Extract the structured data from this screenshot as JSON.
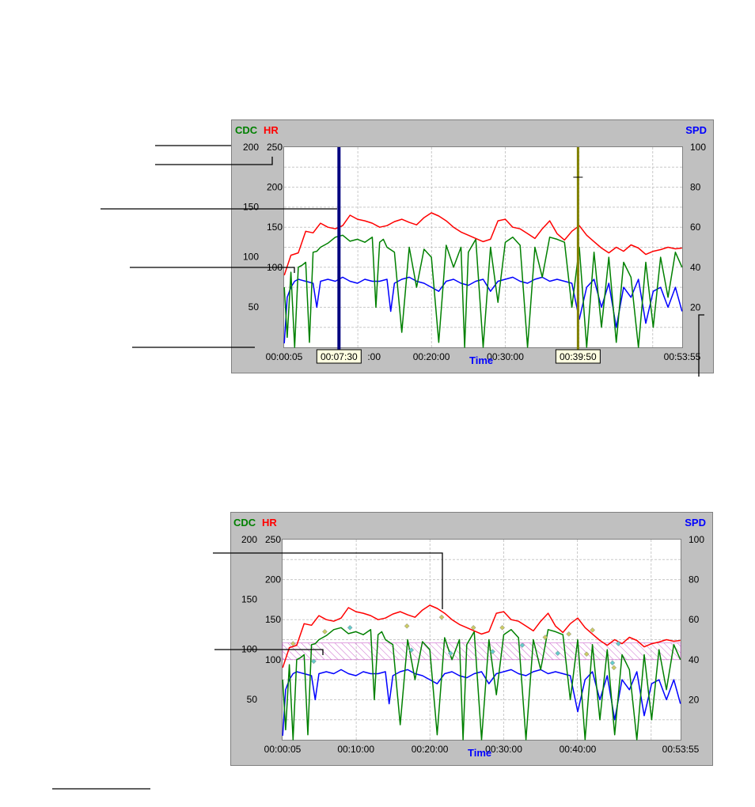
{
  "chart_data": [
    {
      "type": "line",
      "x_axis": {
        "title": "Time",
        "ticks": [
          "00:00:05",
          "00:07:30",
          "00:20:00",
          "00:30:00",
          "00:39:50",
          "00:53:55"
        ],
        "range_minutes": [
          0.08,
          53.92
        ]
      },
      "left_axes": [
        {
          "label": "CDC",
          "color": "#008000",
          "ticks": [
            "200",
            "150",
            "100",
            "50"
          ],
          "range": [
            0,
            200
          ]
        },
        {
          "label": "HR",
          "color": "#ff0000",
          "ticks": [
            "250",
            "200",
            "150",
            "100"
          ],
          "range": [
            0,
            250
          ]
        }
      ],
      "right_axis": {
        "label": "SPD",
        "color": "#0000ff",
        "ticks": [
          "100",
          "80",
          "60",
          "40",
          "20"
        ],
        "range": [
          0,
          100
        ]
      },
      "cursors": [
        {
          "time": "00:07:30",
          "minutes": 7.5,
          "color": "#000080"
        },
        {
          "time": "00:39:50",
          "minutes": 39.83,
          "color": "#808000"
        }
      ],
      "series": [
        {
          "name": "HR",
          "axis": "HR",
          "color": "#ff0000",
          "x_minutes": [
            0.1,
            1,
            2,
            3,
            4,
            5,
            6,
            7,
            8,
            9,
            10,
            11,
            12,
            13,
            14,
            15,
            16,
            17,
            18,
            19,
            20,
            21,
            22,
            23,
            24,
            25,
            26,
            27,
            28,
            29,
            30,
            31,
            32,
            33,
            34,
            35,
            36,
            37,
            38,
            39,
            40,
            41,
            42,
            43,
            44,
            45,
            46,
            47,
            48,
            49,
            50,
            51,
            52,
            53,
            53.9
          ],
          "values": [
            90,
            115,
            118,
            145,
            143,
            155,
            150,
            148,
            152,
            165,
            160,
            158,
            155,
            150,
            152,
            157,
            160,
            156,
            153,
            162,
            168,
            164,
            158,
            150,
            144,
            140,
            136,
            132,
            135,
            158,
            160,
            150,
            148,
            142,
            136,
            148,
            158,
            142,
            134,
            145,
            152,
            140,
            132,
            124,
            118,
            125,
            120,
            128,
            124,
            116,
            120,
            122,
            125,
            123,
            124
          ]
        },
        {
          "name": "CDC",
          "axis": "CDC",
          "color": "#008000",
          "x_minutes": [
            0.1,
            0.5,
            1,
            1.5,
            2,
            2.5,
            3,
            3.5,
            4,
            4.5,
            5,
            6,
            7,
            8,
            9,
            10,
            11,
            12,
            12.5,
            13,
            13.5,
            14,
            15,
            16,
            17,
            18,
            19,
            20,
            21,
            22,
            23,
            24,
            24.5,
            25,
            26,
            27,
            28,
            29,
            30,
            31,
            32,
            33,
            34,
            35,
            36,
            37,
            38,
            39,
            40,
            41,
            42,
            43,
            44,
            45,
            46,
            47,
            48,
            49,
            50,
            51,
            52,
            53,
            53.9
          ],
          "values": [
            60,
            10,
            75,
            0,
            80,
            82,
            85,
            5,
            95,
            96,
            100,
            104,
            110,
            112,
            106,
            108,
            105,
            110,
            40,
            105,
            108,
            100,
            95,
            15,
            100,
            60,
            98,
            90,
            5,
            102,
            80,
            100,
            0,
            95,
            108,
            0,
            100,
            45,
            105,
            110,
            102,
            0,
            100,
            70,
            110,
            108,
            105,
            40,
            100,
            0,
            95,
            20,
            90,
            5,
            85,
            70,
            0,
            85,
            20,
            90,
            50,
            95,
            80
          ]
        },
        {
          "name": "SPD",
          "axis": "SPD",
          "color": "#0000ff",
          "x_minutes": [
            0.1,
            0.5,
            1,
            1.5,
            2,
            3,
            4,
            4.5,
            5,
            6,
            7,
            8,
            9,
            10,
            11,
            12,
            13,
            14,
            14.5,
            15,
            16,
            17,
            18,
            19,
            20,
            21,
            22,
            23,
            24,
            25,
            26,
            27,
            28,
            29,
            30,
            31,
            32,
            33,
            34,
            35,
            36,
            37,
            38,
            39,
            40,
            41,
            42,
            43,
            44,
            45,
            46,
            47,
            48,
            49,
            50,
            51,
            52,
            53,
            53.9
          ],
          "values": [
            2,
            25,
            30,
            33,
            34,
            33,
            32,
            20,
            33,
            34,
            33,
            35,
            33,
            32,
            34,
            33,
            33,
            34,
            18,
            32,
            34,
            35,
            33,
            32,
            30,
            28,
            33,
            34,
            32,
            31,
            33,
            34,
            28,
            33,
            34,
            35,
            33,
            32,
            34,
            35,
            33,
            34,
            33,
            32,
            14,
            30,
            34,
            20,
            32,
            10,
            30,
            25,
            34,
            12,
            28,
            30,
            20,
            30,
            18
          ]
        }
      ]
    },
    {
      "type": "line",
      "x_axis": {
        "title": "Time",
        "ticks": [
          "00:00:05",
          "00:10:00",
          "00:20:00",
          "00:30:00",
          "00:40:00",
          "00:53:55"
        ],
        "range_minutes": [
          0.08,
          53.92
        ]
      },
      "left_axes": [
        {
          "label": "CDC",
          "color": "#008000",
          "ticks": [
            "200",
            "150",
            "100",
            "50"
          ],
          "range": [
            0,
            200
          ]
        },
        {
          "label": "HR",
          "color": "#ff0000",
          "ticks": [
            "250",
            "200",
            "150",
            "100"
          ],
          "range": [
            0,
            250
          ]
        }
      ],
      "right_axis": {
        "label": "SPD",
        "color": "#0000ff",
        "ticks": [
          "100",
          "80",
          "60",
          "40",
          "20"
        ],
        "range": [
          0,
          100
        ]
      },
      "hr_zone": {
        "axis": "HR",
        "range": [
          100,
          121
        ],
        "color": "#cc66cc"
      },
      "series": [
        {
          "name": "HR",
          "axis": "HR",
          "color": "#ff0000",
          "x_minutes": [
            0.1,
            1,
            2,
            3,
            4,
            5,
            6,
            7,
            8,
            9,
            10,
            11,
            12,
            13,
            14,
            15,
            16,
            17,
            18,
            19,
            20,
            21,
            22,
            23,
            24,
            25,
            26,
            27,
            28,
            29,
            30,
            31,
            32,
            33,
            34,
            35,
            36,
            37,
            38,
            39,
            40,
            41,
            42,
            43,
            44,
            45,
            46,
            47,
            48,
            49,
            50,
            51,
            52,
            53,
            53.9
          ],
          "values": [
            90,
            115,
            118,
            145,
            143,
            155,
            150,
            148,
            152,
            165,
            160,
            158,
            155,
            150,
            152,
            157,
            160,
            156,
            153,
            162,
            168,
            164,
            158,
            150,
            144,
            140,
            136,
            132,
            135,
            158,
            160,
            150,
            148,
            142,
            136,
            148,
            158,
            142,
            134,
            145,
            152,
            140,
            132,
            124,
            118,
            125,
            120,
            128,
            124,
            116,
            120,
            122,
            125,
            123,
            124
          ]
        },
        {
          "name": "CDC",
          "axis": "CDC",
          "color": "#008000",
          "x_minutes": [
            0.1,
            0.5,
            1,
            1.5,
            2,
            2.5,
            3,
            3.5,
            4,
            4.5,
            5,
            6,
            7,
            8,
            9,
            10,
            11,
            12,
            12.5,
            13,
            13.5,
            14,
            15,
            16,
            17,
            18,
            19,
            20,
            21,
            22,
            23,
            24,
            24.5,
            25,
            26,
            27,
            28,
            29,
            30,
            31,
            32,
            33,
            34,
            35,
            36,
            37,
            38,
            39,
            40,
            41,
            42,
            43,
            44,
            45,
            46,
            47,
            48,
            49,
            50,
            51,
            52,
            53,
            53.9
          ],
          "values": [
            60,
            10,
            75,
            0,
            80,
            82,
            85,
            5,
            95,
            96,
            100,
            104,
            110,
            112,
            106,
            108,
            105,
            110,
            40,
            105,
            108,
            100,
            95,
            15,
            100,
            60,
            98,
            90,
            5,
            102,
            80,
            100,
            0,
            95,
            108,
            0,
            100,
            45,
            105,
            110,
            102,
            0,
            100,
            70,
            110,
            108,
            105,
            40,
            100,
            0,
            95,
            20,
            90,
            5,
            85,
            70,
            0,
            85,
            20,
            90,
            50,
            95,
            80
          ]
        },
        {
          "name": "SPD",
          "axis": "SPD",
          "color": "#0000ff",
          "x_minutes": [
            0.1,
            0.5,
            1,
            1.5,
            2,
            3,
            4,
            4.5,
            5,
            6,
            7,
            8,
            9,
            10,
            11,
            12,
            13,
            14,
            14.5,
            15,
            16,
            17,
            18,
            19,
            20,
            21,
            22,
            23,
            24,
            25,
            26,
            27,
            28,
            29,
            30,
            31,
            32,
            33,
            34,
            35,
            36,
            37,
            38,
            39,
            40,
            41,
            42,
            43,
            44,
            45,
            46,
            47,
            48,
            49,
            50,
            51,
            52,
            53,
            53.9
          ],
          "values": [
            2,
            25,
            30,
            33,
            34,
            33,
            32,
            20,
            33,
            34,
            33,
            35,
            33,
            32,
            34,
            33,
            33,
            34,
            18,
            32,
            34,
            35,
            33,
            32,
            30,
            28,
            33,
            34,
            32,
            31,
            33,
            34,
            28,
            33,
            34,
            35,
            33,
            32,
            34,
            35,
            33,
            34,
            33,
            32,
            14,
            30,
            34,
            20,
            32,
            10,
            30,
            25,
            34,
            12,
            28,
            30,
            20,
            30,
            18
          ]
        }
      ],
      "markers": [
        {
          "minutes": 1.5,
          "value": 120,
          "axis": "HR",
          "color": "#cccc66"
        },
        {
          "minutes": 4.3,
          "value": 98,
          "axis": "HR",
          "color": "#66cccc"
        },
        {
          "minutes": 5.8,
          "value": 135,
          "axis": "HR",
          "color": "#cccc66"
        },
        {
          "minutes": 9.2,
          "value": 140,
          "axis": "HR",
          "color": "#66cccc"
        },
        {
          "minutes": 16.9,
          "value": 142,
          "axis": "HR",
          "color": "#cccc66"
        },
        {
          "minutes": 17.5,
          "value": 112,
          "axis": "HR",
          "color": "#66cccc"
        },
        {
          "minutes": 21.6,
          "value": 153,
          "axis": "HR",
          "color": "#cccc66"
        },
        {
          "minutes": 22.8,
          "value": 108,
          "axis": "HR",
          "color": "#66cccc"
        },
        {
          "minutes": 25.9,
          "value": 140,
          "axis": "HR",
          "color": "#cccc66"
        },
        {
          "minutes": 28.5,
          "value": 110,
          "axis": "HR",
          "color": "#66cccc"
        },
        {
          "minutes": 29.8,
          "value": 140,
          "axis": "HR",
          "color": "#cccc66"
        },
        {
          "minutes": 32.5,
          "value": 118,
          "axis": "HR",
          "color": "#66cccc"
        },
        {
          "minutes": 35.6,
          "value": 128,
          "axis": "HR",
          "color": "#cccc66"
        },
        {
          "minutes": 37.3,
          "value": 108,
          "axis": "HR",
          "color": "#66cccc"
        },
        {
          "minutes": 38.8,
          "value": 132,
          "axis": "HR",
          "color": "#cccc66"
        },
        {
          "minutes": 41.2,
          "value": 107,
          "axis": "HR",
          "color": "#cccc66"
        },
        {
          "minutes": 42.0,
          "value": 137,
          "axis": "HR",
          "color": "#cccc66"
        },
        {
          "minutes": 44.7,
          "value": 96,
          "axis": "HR",
          "color": "#66cccc"
        },
        {
          "minutes": 44.9,
          "value": 90,
          "axis": "HR",
          "color": "#cccc66"
        },
        {
          "minutes": 45.5,
          "value": 120,
          "axis": "HR",
          "color": "#66cccc"
        }
      ]
    }
  ]
}
